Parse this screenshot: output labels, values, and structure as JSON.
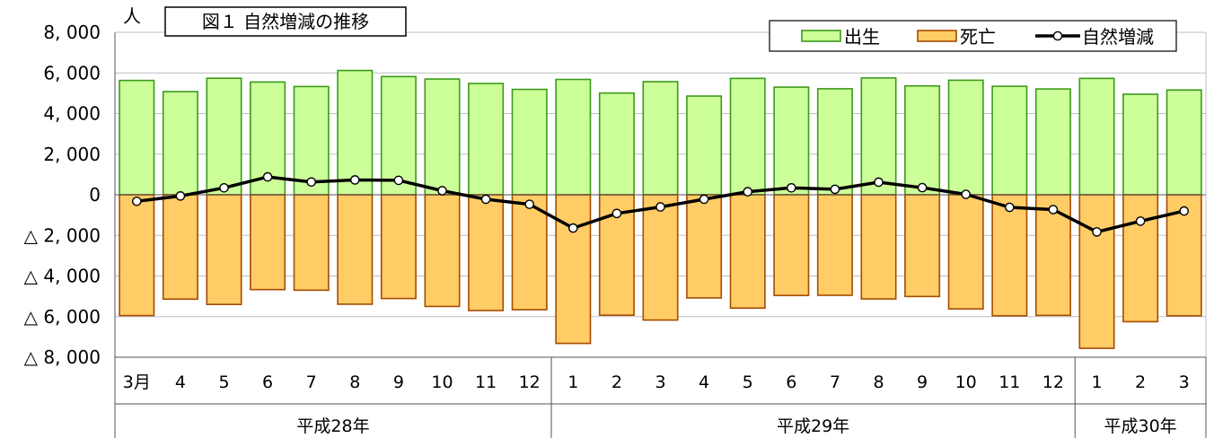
{
  "chart_data": {
    "type": "bar",
    "title": "図１ 自然増減の推移",
    "unit": "人",
    "categories": [
      "3月",
      "4",
      "5",
      "6",
      "7",
      "8",
      "9",
      "10",
      "11",
      "12",
      "1",
      "2",
      "3",
      "4",
      "5",
      "6",
      "7",
      "8",
      "9",
      "10",
      "11",
      "12",
      "1",
      "2",
      "3"
    ],
    "year_groups": [
      {
        "label": "平成28年",
        "span": 10
      },
      {
        "label": "平成29年",
        "span": 12
      },
      {
        "label": "平成30年",
        "span": 3
      }
    ],
    "y_ticks": [
      {
        "value": 8000,
        "label": "8, 000"
      },
      {
        "value": 6000,
        "label": "6, 000"
      },
      {
        "value": 4000,
        "label": "4, 000"
      },
      {
        "value": 2000,
        "label": "2, 000"
      },
      {
        "value": 0,
        "label": "0"
      },
      {
        "value": -2000,
        "label": "△ 2, 000"
      },
      {
        "value": -4000,
        "label": "△ 4, 000"
      },
      {
        "value": -6000,
        "label": "△ 6, 000"
      },
      {
        "value": -8000,
        "label": "△ 8, 000"
      }
    ],
    "ylim": [
      -8000,
      8000
    ],
    "grid": true,
    "legend_position": "top-right",
    "series": [
      {
        "name": "出生",
        "kind": "bar",
        "color": "#ccff99",
        "stroke": "#3b9a1a",
        "values": [
          5630,
          5080,
          5740,
          5550,
          5330,
          6120,
          5820,
          5700,
          5480,
          5190,
          5680,
          5010,
          5570,
          4860,
          5730,
          5300,
          5220,
          5750,
          5360,
          5640,
          5340,
          5210,
          5730,
          4950,
          5160
        ]
      },
      {
        "name": "死亡",
        "kind": "bar",
        "color": "#ffcc66",
        "stroke": "#a64b00",
        "values": [
          -5950,
          -5140,
          -5400,
          -4670,
          -4700,
          -5390,
          -5110,
          -5500,
          -5700,
          -5660,
          -7320,
          -5930,
          -6170,
          -5080,
          -5580,
          -4960,
          -4950,
          -5130,
          -5010,
          -5620,
          -5960,
          -5940,
          -7560,
          -6250,
          -5960
        ]
      },
      {
        "name": "自然増減",
        "kind": "line",
        "color": "#000000",
        "values": [
          -320,
          -60,
          340,
          880,
          630,
          730,
          710,
          200,
          -220,
          -470,
          -1640,
          -920,
          -600,
          -220,
          150,
          340,
          270,
          620,
          350,
          20,
          -620,
          -730,
          -1830,
          -1300,
          -800
        ]
      }
    ]
  }
}
